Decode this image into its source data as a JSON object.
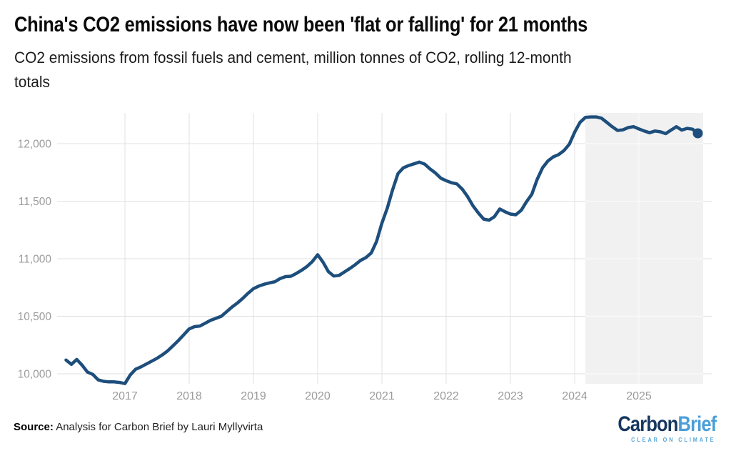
{
  "header": {
    "subtitle_lines": [
      "CO2 emissions from fossil fuels and cement, million tonnes of CO2, rolling 12-month",
      "totals"
    ]
  },
  "chart_data": {
    "type": "line",
    "title": "China's CO2 emissions have now been 'flat or falling' for 21 months",
    "subtitle": "CO2 emissions from fossil fuels and cement, million tonnes of CO2, rolling 12-month totals",
    "unit": "million tonnes of CO2",
    "x_axis": {
      "ticks": [
        {
          "label": "2017",
          "value": 2017
        },
        {
          "label": "2018",
          "value": 2018
        },
        {
          "label": "2019",
          "value": 2019
        },
        {
          "label": "2020",
          "value": 2020
        },
        {
          "label": "2021",
          "value": 2021
        },
        {
          "label": "2022",
          "value": 2022
        },
        {
          "label": "2023",
          "value": 2023
        },
        {
          "label": "2024",
          "value": 2024
        },
        {
          "label": "2025",
          "value": 2025
        }
      ],
      "range": [
        2016.05,
        2026.13
      ],
      "grid": true
    },
    "y_axis": {
      "ticks": [
        {
          "label": "12,000",
          "value": 12000
        },
        {
          "label": "11,500",
          "value": 11500
        },
        {
          "label": "11,000",
          "value": 11000
        },
        {
          "label": "10,500",
          "value": 10500
        },
        {
          "label": "10,000",
          "value": 10000
        }
      ],
      "range": [
        9913,
        12267
      ],
      "grid": true
    },
    "highlight_band": {
      "from": 2024.167,
      "to": 2026.0,
      "color": "#f1f1f1"
    },
    "series": [
      {
        "name": "CO2 emissions from fossil fuels and cement, rolling 12-month total",
        "color": "#1d4e7c",
        "start_year": 2016,
        "start_month": 2,
        "frequency": "monthly",
        "end_dot": true,
        "values": [
          10120,
          10082,
          10125,
          10075,
          10015,
          9995,
          9948,
          9935,
          9930,
          9930,
          9925,
          9915,
          9990,
          10040,
          10060,
          10085,
          10110,
          10135,
          10165,
          10200,
          10245,
          10290,
          10340,
          10390,
          10410,
          10415,
          10440,
          10465,
          10482,
          10500,
          10540,
          10580,
          10615,
          10655,
          10700,
          10740,
          10762,
          10778,
          10790,
          10800,
          10828,
          10845,
          10848,
          10872,
          10900,
          10932,
          10975,
          11035,
          10970,
          10888,
          10850,
          10855,
          10885,
          10915,
          10948,
          10985,
          11010,
          11050,
          11150,
          11310,
          11440,
          11600,
          11740,
          11790,
          11810,
          11825,
          11840,
          11822,
          11780,
          11745,
          11700,
          11678,
          11660,
          11650,
          11605,
          11540,
          11460,
          11398,
          11345,
          11335,
          11365,
          11432,
          11408,
          11388,
          11382,
          11420,
          11495,
          11560,
          11690,
          11790,
          11850,
          11885,
          11905,
          11940,
          11995,
          12100,
          12185,
          12228,
          12232,
          12232,
          12222,
          12185,
          12148,
          12115,
          12120,
          12140,
          12148,
          12128,
          12110,
          12095,
          12110,
          12103,
          12087,
          12118,
          12147,
          12118,
          12133,
          12126,
          12090
        ]
      }
    ]
  },
  "footer": {
    "source_label": "Source:",
    "source_text": " Analysis for Carbon Brief by Lauri Myllyvirta",
    "logo": {
      "part1": "Carbon",
      "part2": "Brief",
      "tagline": "CLEAR ON CLIMATE",
      "color_dark": "#16375f",
      "color_light": "#4b9ed7",
      "color_tagline": "#58a6d8"
    }
  }
}
